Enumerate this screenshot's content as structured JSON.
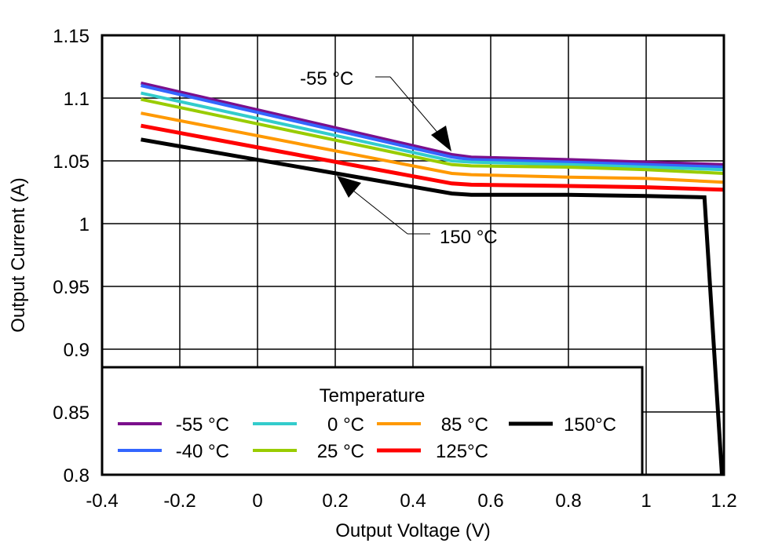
{
  "chart_data": {
    "type": "line",
    "title": "",
    "xlabel": "Output Voltage (V)",
    "ylabel": "Output Current (A)",
    "xlim": [
      -0.4,
      1.2
    ],
    "ylim": [
      0.8,
      1.15
    ],
    "xticks": [
      "-0.4",
      "-0.2",
      "0",
      "0.2",
      "0.4",
      "0.6",
      "0.8",
      "1",
      "1.2"
    ],
    "yticks": [
      "0.8",
      "0.85",
      "0.9",
      "0.95",
      "1",
      "1.05",
      "1.1",
      "1.15"
    ],
    "grid": true,
    "legend": {
      "title": "Temperature",
      "placement": "bottom-left"
    },
    "annotations": [
      {
        "text": "-55 °C"
      },
      {
        "text": "150 °C"
      }
    ],
    "series": [
      {
        "name": "-55 °C",
        "color": "#7b0f8c",
        "x": [
          -0.3,
          0.5,
          0.55,
          0.8,
          1.0,
          1.2
        ],
        "y": [
          1.112,
          1.055,
          1.053,
          1.051,
          1.049,
          1.047
        ]
      },
      {
        "name": "-40 °C",
        "color": "#3366ff",
        "x": [
          -0.3,
          0.5,
          0.55,
          0.8,
          1.0,
          1.2
        ],
        "y": [
          1.11,
          1.053,
          1.051,
          1.049,
          1.047,
          1.045
        ]
      },
      {
        "name": "0 °C",
        "color": "#33cccc",
        "x": [
          -0.3,
          0.5,
          0.55,
          0.8,
          1.0,
          1.2
        ],
        "y": [
          1.104,
          1.05,
          1.049,
          1.047,
          1.045,
          1.043
        ]
      },
      {
        "name": "25 °C",
        "color": "#99cc00",
        "x": [
          -0.3,
          0.5,
          0.55,
          0.8,
          1.0,
          1.2
        ],
        "y": [
          1.099,
          1.047,
          1.046,
          1.045,
          1.043,
          1.04
        ]
      },
      {
        "name": "85 °C",
        "color": "#ff9900",
        "x": [
          -0.3,
          0.5,
          0.55,
          0.8,
          1.0,
          1.2
        ],
        "y": [
          1.088,
          1.04,
          1.039,
          1.037,
          1.036,
          1.033
        ]
      },
      {
        "name": "125°C",
        "color": "#ff0000",
        "x": [
          -0.3,
          0.5,
          0.55,
          0.8,
          1.0,
          1.2
        ],
        "y": [
          1.078,
          1.032,
          1.031,
          1.03,
          1.029,
          1.027
        ]
      },
      {
        "name": "150°C",
        "color": "#000000",
        "x": [
          -0.3,
          0.5,
          0.55,
          0.8,
          1.0,
          1.15,
          1.195
        ],
        "y": [
          1.067,
          1.024,
          1.023,
          1.023,
          1.022,
          1.021,
          0.8
        ]
      }
    ]
  }
}
